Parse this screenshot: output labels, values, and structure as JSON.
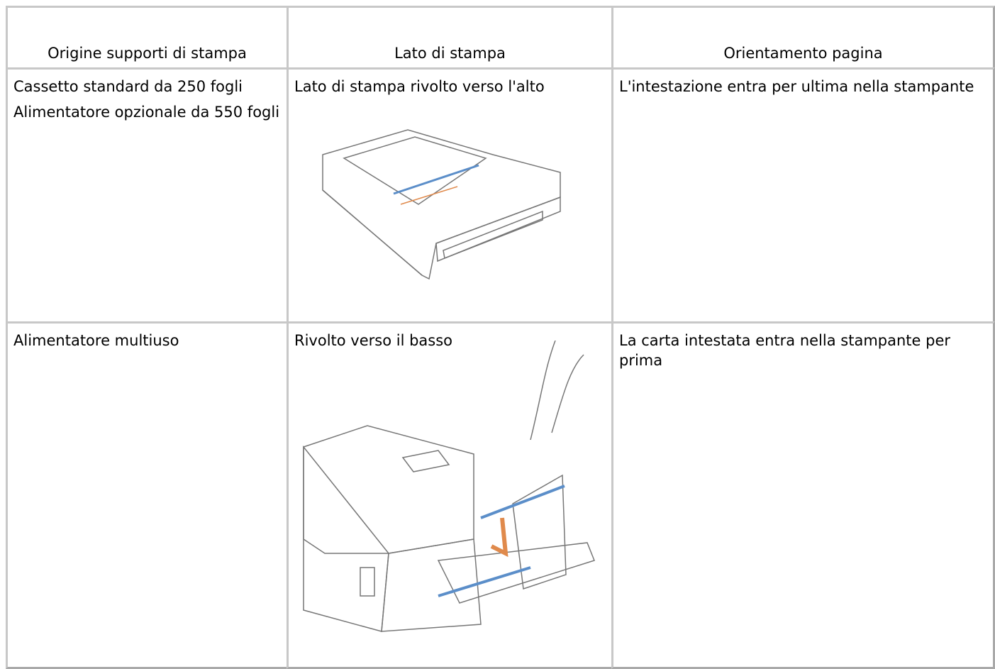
{
  "table": {
    "header": [
      "Origine supporti di stampa",
      "Lato di stampa",
      "Orientamento pagina"
    ],
    "rows": [
      [
        [
          "Cassetto standard da 250 fogli",
          "Alimentatore opzionale da 550 fogli"
        ],
        "Lato di stampa rivolto verso l'alto",
        "L'intestazione entra per ultima nella stampante"
      ],
      [
        [
          "Alimentatore multiuso"
        ],
        "Rivolto verso il basso",
        "La carta intestata entra nella stampante per prima"
      ]
    ]
  }
}
